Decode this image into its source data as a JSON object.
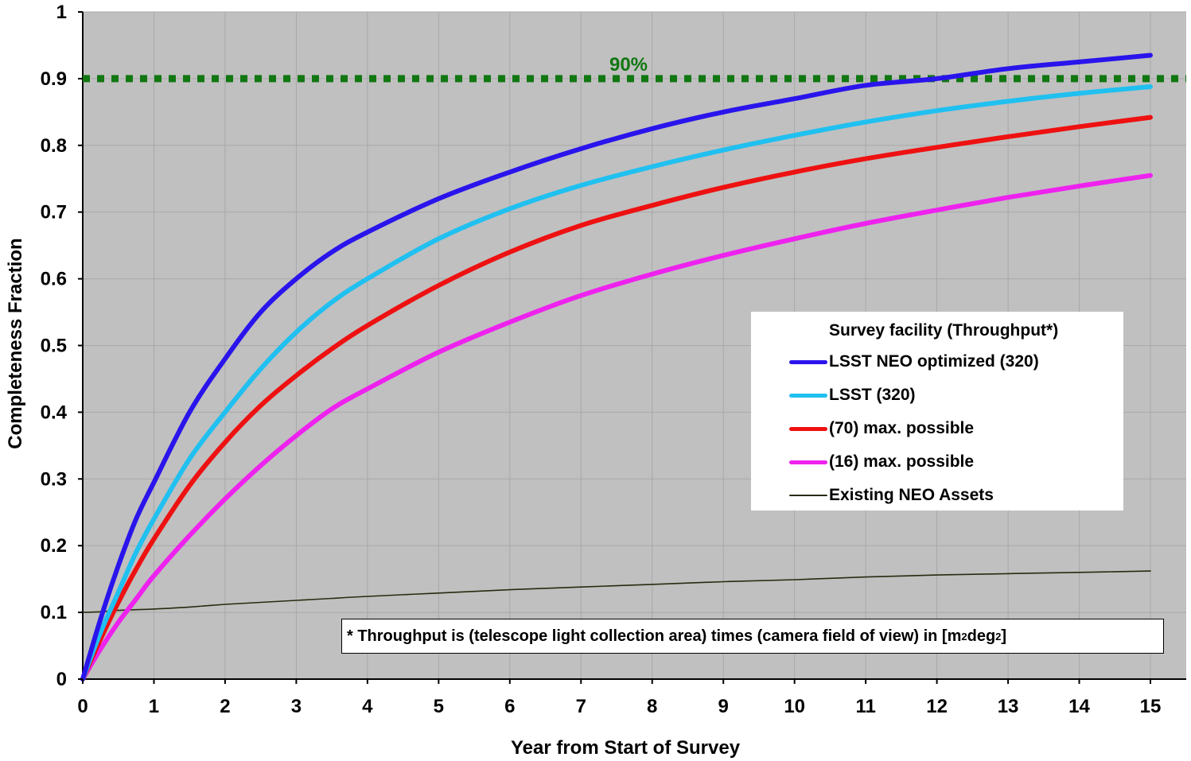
{
  "chart_data": {
    "type": "line",
    "xlabel": "Year from Start of Survey",
    "ylabel": "Completeness Fraction",
    "xlim": [
      0,
      15
    ],
    "ylim": [
      0,
      1
    ],
    "x_ticks": [
      "0",
      "1",
      "2",
      "3",
      "4",
      "5",
      "6",
      "7",
      "8",
      "9",
      "10",
      "11",
      "12",
      "13",
      "14",
      "15"
    ],
    "y_ticks": [
      "0",
      "0.1",
      "0.2",
      "0.3",
      "0.4",
      "0.5",
      "0.6",
      "0.7",
      "0.8",
      "0.9",
      "1"
    ],
    "grid": true,
    "background": "#c0c0c0",
    "x": [
      0,
      0.25,
      0.5,
      0.75,
      1,
      1.5,
      2,
      2.5,
      3,
      3.5,
      4,
      5,
      6,
      7,
      8,
      9,
      10,
      11,
      12,
      13,
      14,
      15
    ],
    "series": [
      {
        "name": "LSST NEO optimized (320)",
        "color": "#2a14ec",
        "width": 6,
        "values": [
          0,
          0.09,
          0.17,
          0.24,
          0.295,
          0.4,
          0.48,
          0.55,
          0.6,
          0.64,
          0.67,
          0.72,
          0.76,
          0.795,
          0.825,
          0.85,
          0.87,
          0.89,
          0.9,
          0.915,
          0.925,
          0.935
        ]
      },
      {
        "name": "LSST (320)",
        "color": "#20c0f0",
        "width": 6,
        "values": [
          0,
          0.07,
          0.13,
          0.19,
          0.24,
          0.33,
          0.4,
          0.465,
          0.52,
          0.565,
          0.6,
          0.66,
          0.705,
          0.74,
          0.768,
          0.793,
          0.815,
          0.835,
          0.852,
          0.866,
          0.878,
          0.888
        ]
      },
      {
        "name": "(70) max. possible",
        "color": "#ee1111",
        "width": 6,
        "values": [
          0,
          0.06,
          0.115,
          0.165,
          0.21,
          0.29,
          0.355,
          0.41,
          0.455,
          0.495,
          0.53,
          0.59,
          0.64,
          0.68,
          0.71,
          0.737,
          0.76,
          0.78,
          0.797,
          0.813,
          0.828,
          0.842
        ]
      },
      {
        "name": "(16) max. possible",
        "color": "#ee22ee",
        "width": 6,
        "values": [
          0,
          0.045,
          0.085,
          0.12,
          0.155,
          0.215,
          0.27,
          0.32,
          0.365,
          0.405,
          0.435,
          0.49,
          0.535,
          0.575,
          0.607,
          0.635,
          0.66,
          0.683,
          0.703,
          0.722,
          0.739,
          0.755
        ]
      },
      {
        "name": "Existing NEO Assets",
        "color": "#2a2a10",
        "width": 1.6,
        "values": [
          0.1,
          0.101,
          0.103,
          0.104,
          0.105,
          0.108,
          0.112,
          0.115,
          0.118,
          0.121,
          0.124,
          0.129,
          0.134,
          0.138,
          0.142,
          0.146,
          0.149,
          0.153,
          0.156,
          0.158,
          0.16,
          0.162
        ]
      }
    ],
    "reference_line": {
      "y": 0.9,
      "label": "90%",
      "color": "#117711"
    },
    "legend": {
      "title": "Survey facility (Throughput*)",
      "placement": "right-middle"
    },
    "note": {
      "prefix": "* Throughput is (telescope light collection area) times (camera field of view) in [m",
      "sup1": "2",
      "middle": " deg",
      "sup2": "2",
      "suffix": "]"
    }
  }
}
